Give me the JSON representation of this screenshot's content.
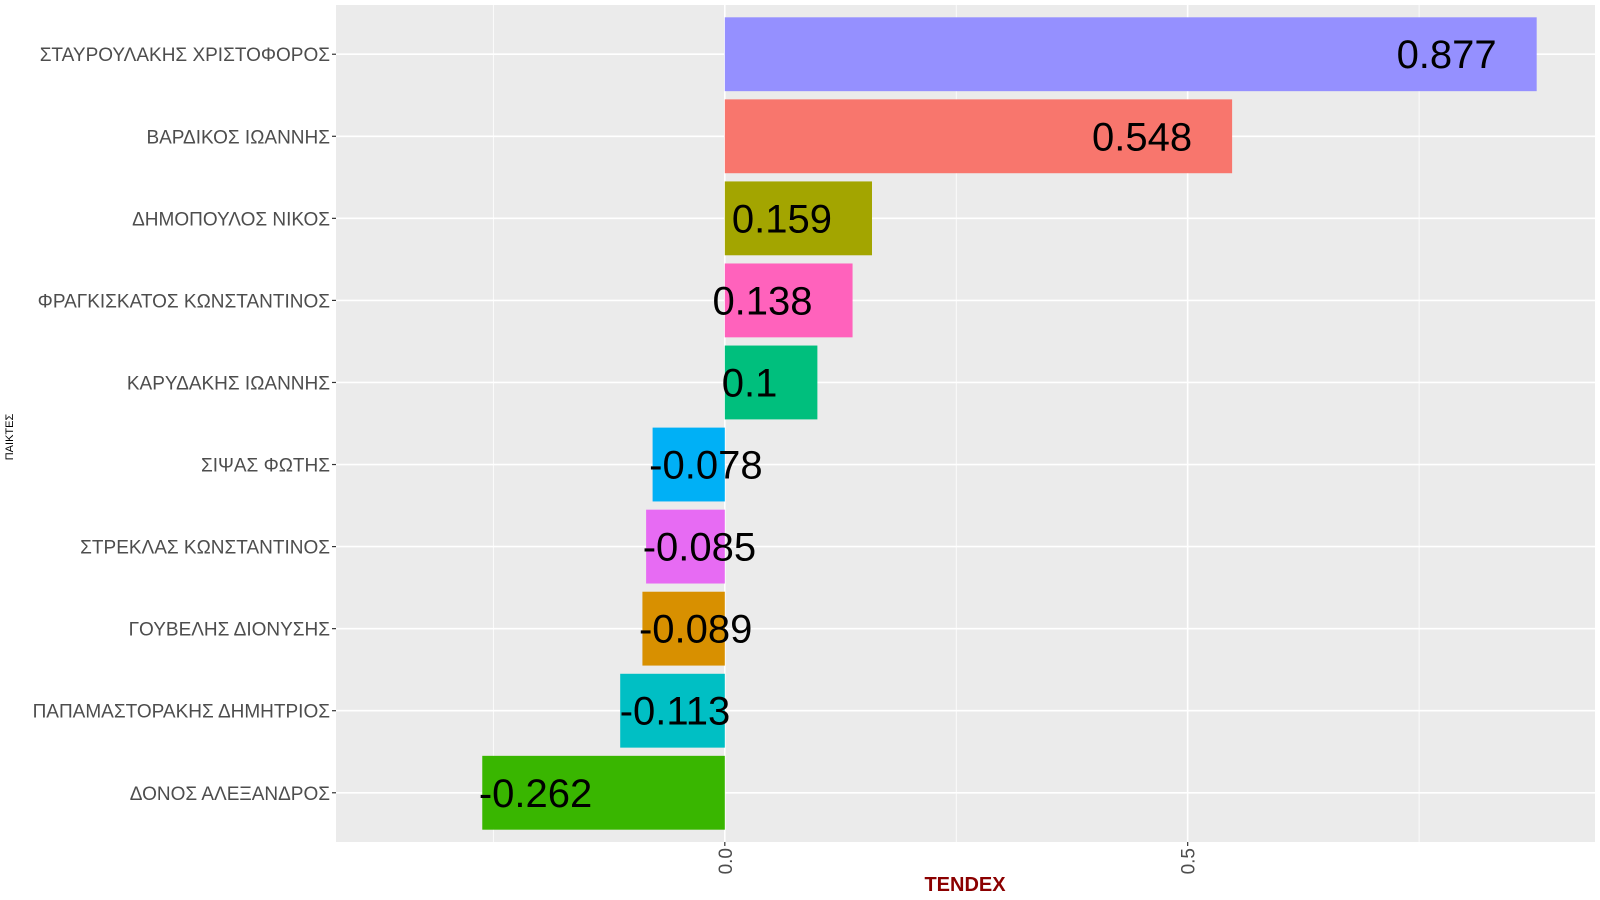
{
  "chart_data": {
    "type": "bar",
    "orientation": "horizontal",
    "categories": [
      "ΣΤΑΥΡΟΥΛΑΚΗΣ ΧΡΙΣΤΟΦΟΡΟΣ",
      "ΒΑΡΔΙΚΟΣ ΙΩΑΝΝΗΣ",
      "ΔΗΜΟΠΟΥΛΟΣ ΝΙΚΟΣ",
      "ΦΡΑΓΚΙΣΚΑΤΟΣ ΚΩΝΣΤΑΝΤΙΝΟΣ",
      "ΚΑΡΥΔΑΚΗΣ ΙΩΑΝΝΗΣ",
      "ΣΙΨΑΣ ΦΩΤΗΣ",
      "ΣΤΡΕΚΛΑΣ ΚΩΝΣΤΑΝΤΙΝΟΣ",
      "ΓΟΥΒΕΛΗΣ ΔΙΟΝΥΣΗΣ",
      "ΠΑΠΑΜΑΣΤΟΡΑΚΗΣ ΔΗΜΗΤΡΙΟΣ",
      "ΔΟΝΟΣ ΑΛΕΞΑΝΔΡΟΣ"
    ],
    "values": [
      0.877,
      0.548,
      0.159,
      0.138,
      0.1,
      -0.078,
      -0.085,
      -0.089,
      -0.113,
      -0.262
    ],
    "value_labels": [
      "0.877",
      "0.548",
      "0.159",
      "0.138",
      "0.1",
      "-0.078",
      "-0.085",
      "-0.089",
      "-0.113",
      "-0.262"
    ],
    "colors": [
      "#9590FF",
      "#F8766D",
      "#A3A500",
      "#FF62BC",
      "#00BF7D",
      "#00B0F6",
      "#E76BF3",
      "#D89000",
      "#00BFC4",
      "#39B600"
    ],
    "xlabel": "TENDEX",
    "ylabel": "ΠΑΙΚΤΕΣ",
    "xlim": [
      -0.42,
      0.94
    ],
    "ticks": [
      0.0,
      0.5
    ],
    "tick_labels": [
      "0.0",
      "0.5"
    ],
    "grid": true,
    "legend": "none",
    "panel_background": "#EBEBEB",
    "grid_color": "#FFFFFF",
    "xlabel_color": "#8B0000"
  }
}
